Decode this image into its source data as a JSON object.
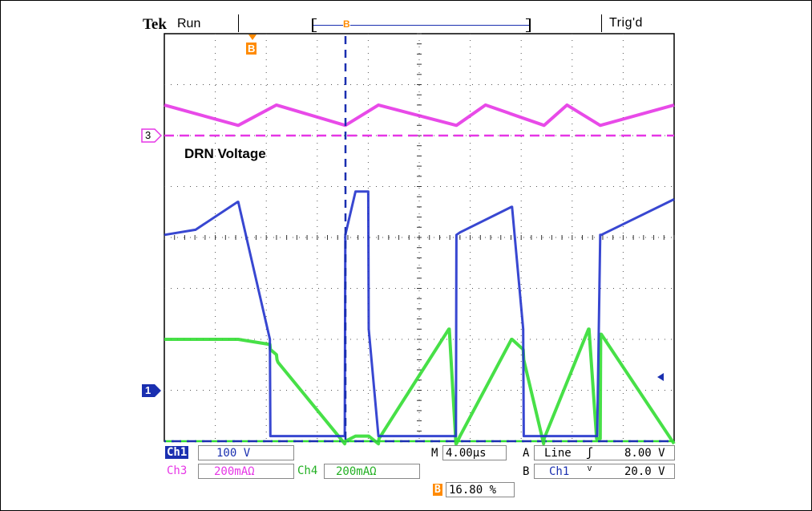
{
  "header": {
    "brand": "Tek",
    "status": "Run",
    "trigger_status": "Trig'd",
    "delay_marker": "B"
  },
  "annotation": {
    "drn_label": "DRN Voltage"
  },
  "channel_markers": {
    "ch3": "3",
    "ch1": "1"
  },
  "readout": {
    "ch1_name": "Ch1",
    "ch1_scale": "100 V",
    "ch3_name": "Ch3",
    "ch3_scale": "200mAΩ",
    "ch4_name": "Ch4",
    "ch4_coupling": "↓",
    "ch4_scale": "200mAΩ",
    "timebase_label": "M",
    "timebase": "4.00µs",
    "trig_a_label": "A",
    "trig_a_source": "Line",
    "trig_a_slope": "ʃ",
    "trig_a_level": "8.00 V",
    "trig_b_label": "B",
    "trig_b_source": "Ch1",
    "trig_b_slope": "ⱽ",
    "trig_b_level": "20.0 V",
    "delay_icon": "B",
    "delay_percent": "16.80 %"
  },
  "colors": {
    "ch1": "#2233cc",
    "ch3": "#e636e6",
    "ch4": "#33dd33",
    "cursor": "#1a2fb0",
    "marker_orange": "#ff8a00"
  },
  "chart_data": {
    "type": "line",
    "grid": "on",
    "divisions": {
      "x": 10,
      "y": 8
    },
    "x": [
      0,
      0.6,
      0.61,
      1.44,
      1.45,
      2.07,
      2.08,
      2.2,
      2.21,
      2.23,
      3.54,
      3.55,
      3.75,
      3.76,
      4.0,
      4.01,
      4.2,
      4.21,
      5.58,
      5.59,
      5.72,
      5.73,
      5.8,
      6.81,
      6.82,
      7.04,
      7.05,
      7.44,
      7.45,
      8.32,
      8.33,
      8.48,
      8.49,
      8.55,
      8.56,
      8.57,
      10.0
    ],
    "series": [
      {
        "name": "Ch1",
        "values": [
          4.05,
          4.15,
          4.15,
          4.7,
          4.7,
          2.0,
          0.1,
          0.1,
          0.1,
          0.1,
          0.1,
          4.05,
          4.9,
          4.9,
          4.9,
          2.2,
          0.1,
          0.1,
          0.1,
          0.1,
          0.1,
          4.05,
          4.1,
          4.6,
          4.6,
          2.2,
          0.1,
          0.1,
          0.1,
          0.1,
          0.1,
          0.1,
          0.1,
          4.05,
          4.05,
          4.05,
          4.75
        ]
      },
      {
        "name": "Ch4",
        "values": [
          2.0,
          2.0,
          2.0,
          2.0,
          2.0,
          1.9,
          1.8,
          1.7,
          1.6,
          1.55,
          -0.05,
          0.0,
          0.1,
          0.1,
          0.1,
          0.1,
          -0.05,
          0.05,
          2.2,
          2.2,
          -0.05,
          -0.05,
          0.1,
          2.0,
          2.0,
          1.8,
          1.6,
          -0.05,
          0.05,
          2.2,
          2.2,
          0.05,
          0.05,
          0.05,
          2.1,
          2.1,
          -0.05
        ]
      }
    ],
    "ch3": {
      "name": "Ch3",
      "x": [
        0,
        1.45,
        2.2,
        3.55,
        4.2,
        5.73,
        6.3,
        7.45,
        7.9,
        8.55,
        10.0
      ],
      "values": [
        6.6,
        6.2,
        6.6,
        6.2,
        6.6,
        6.2,
        6.6,
        6.2,
        6.6,
        6.2,
        6.6
      ]
    }
  }
}
